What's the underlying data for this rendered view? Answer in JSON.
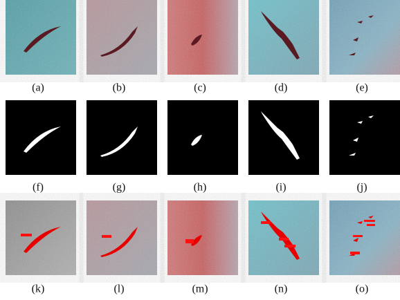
{
  "panels": {
    "rows": [
      [
        "(a)",
        "(b)",
        "(c)",
        "(d)",
        "(e)"
      ],
      [
        "(f)",
        "(g)",
        "(h)",
        "(i)",
        "(j)"
      ],
      [
        "(k)",
        "(l)",
        "(m)",
        "(n)",
        "(o)"
      ]
    ]
  }
}
